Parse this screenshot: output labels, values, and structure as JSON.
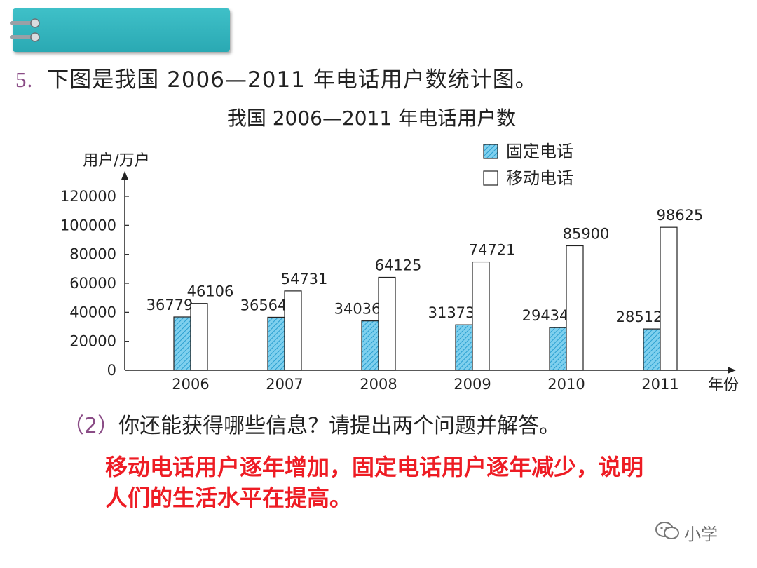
{
  "question": {
    "number": "5.",
    "text": "下图是我国 2006—2011 年电话用户数统计图。"
  },
  "sub_question": {
    "paren": "（2）",
    "text": "你还能获得哪些信息？请提出两个问题并解答。"
  },
  "answer": {
    "text": "移动电话用户逐年增加，固定电话用户逐年减少，说明人们的生活水平在提高。"
  },
  "watermark": {
    "icon": "wechat-icon",
    "text": "小学"
  },
  "colors": {
    "header": "#36b6bf",
    "fixed_fill": "#5bc0e6",
    "mobile_fill": "#ffffff",
    "answer": "#ee1c24",
    "number": "#8a4c86"
  },
  "chart_data": {
    "type": "bar",
    "title": "我国 2006—2011 年电话用户数",
    "xlabel": "年份",
    "ylabel": "用户/万户",
    "categories": [
      "2006",
      "2007",
      "2008",
      "2009",
      "2010",
      "2011"
    ],
    "series": [
      {
        "name": "固定电话",
        "values": [
          36779,
          36564,
          34036,
          31373,
          29434,
          28512
        ],
        "fill": "hatched-blue"
      },
      {
        "name": "移动电话",
        "values": [
          46106,
          54731,
          64125,
          74721,
          85900,
          98625
        ],
        "fill": "white"
      }
    ],
    "yticks": [
      "0",
      "20000",
      "40000",
      "60000",
      "80000",
      "100000",
      "120000"
    ],
    "ylim": [
      0,
      120000
    ],
    "grid": false,
    "legend": "top-right",
    "data_labels": true
  }
}
